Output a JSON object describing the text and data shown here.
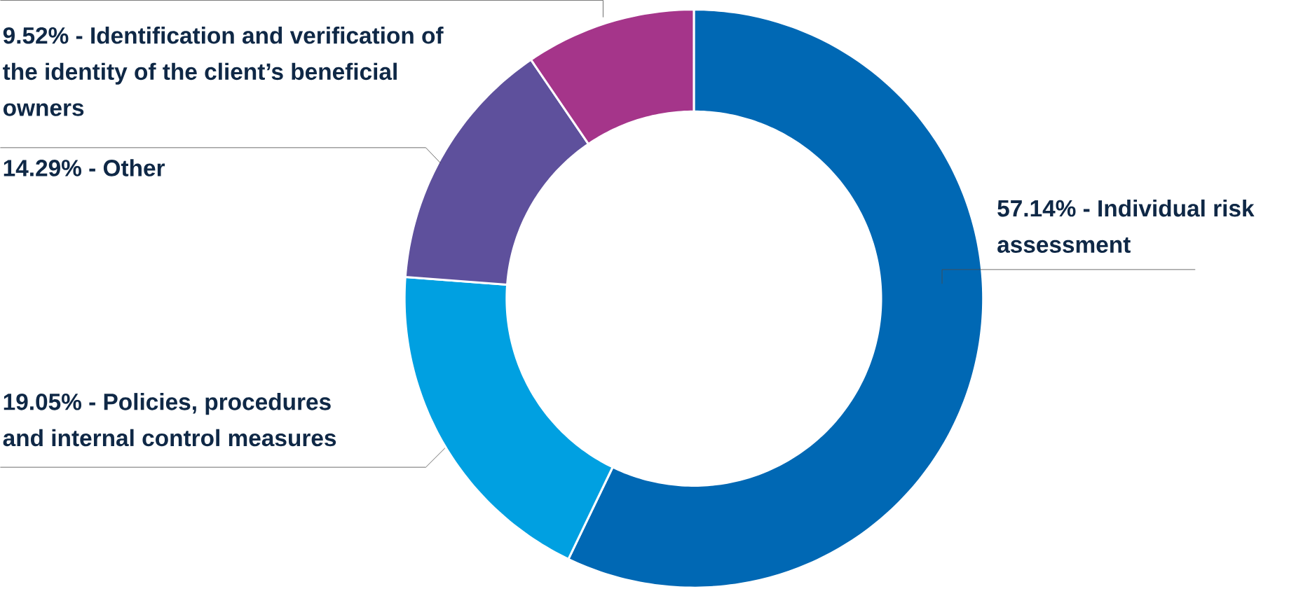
{
  "chart_data": {
    "type": "donut",
    "categories": [
      "57.14% - Individual risk assessment",
      "19.05% - Policies, procedures and internal control measures",
      "14.29% - Other",
      "9.52% - Identification and verification of the identity of the client’s beneficial owners"
    ],
    "values": [
      57.14,
      19.05,
      14.29,
      9.52
    ],
    "colors": [
      "#0068b4",
      "#00a0e1",
      "#5e509c",
      "#a5358a"
    ]
  }
}
